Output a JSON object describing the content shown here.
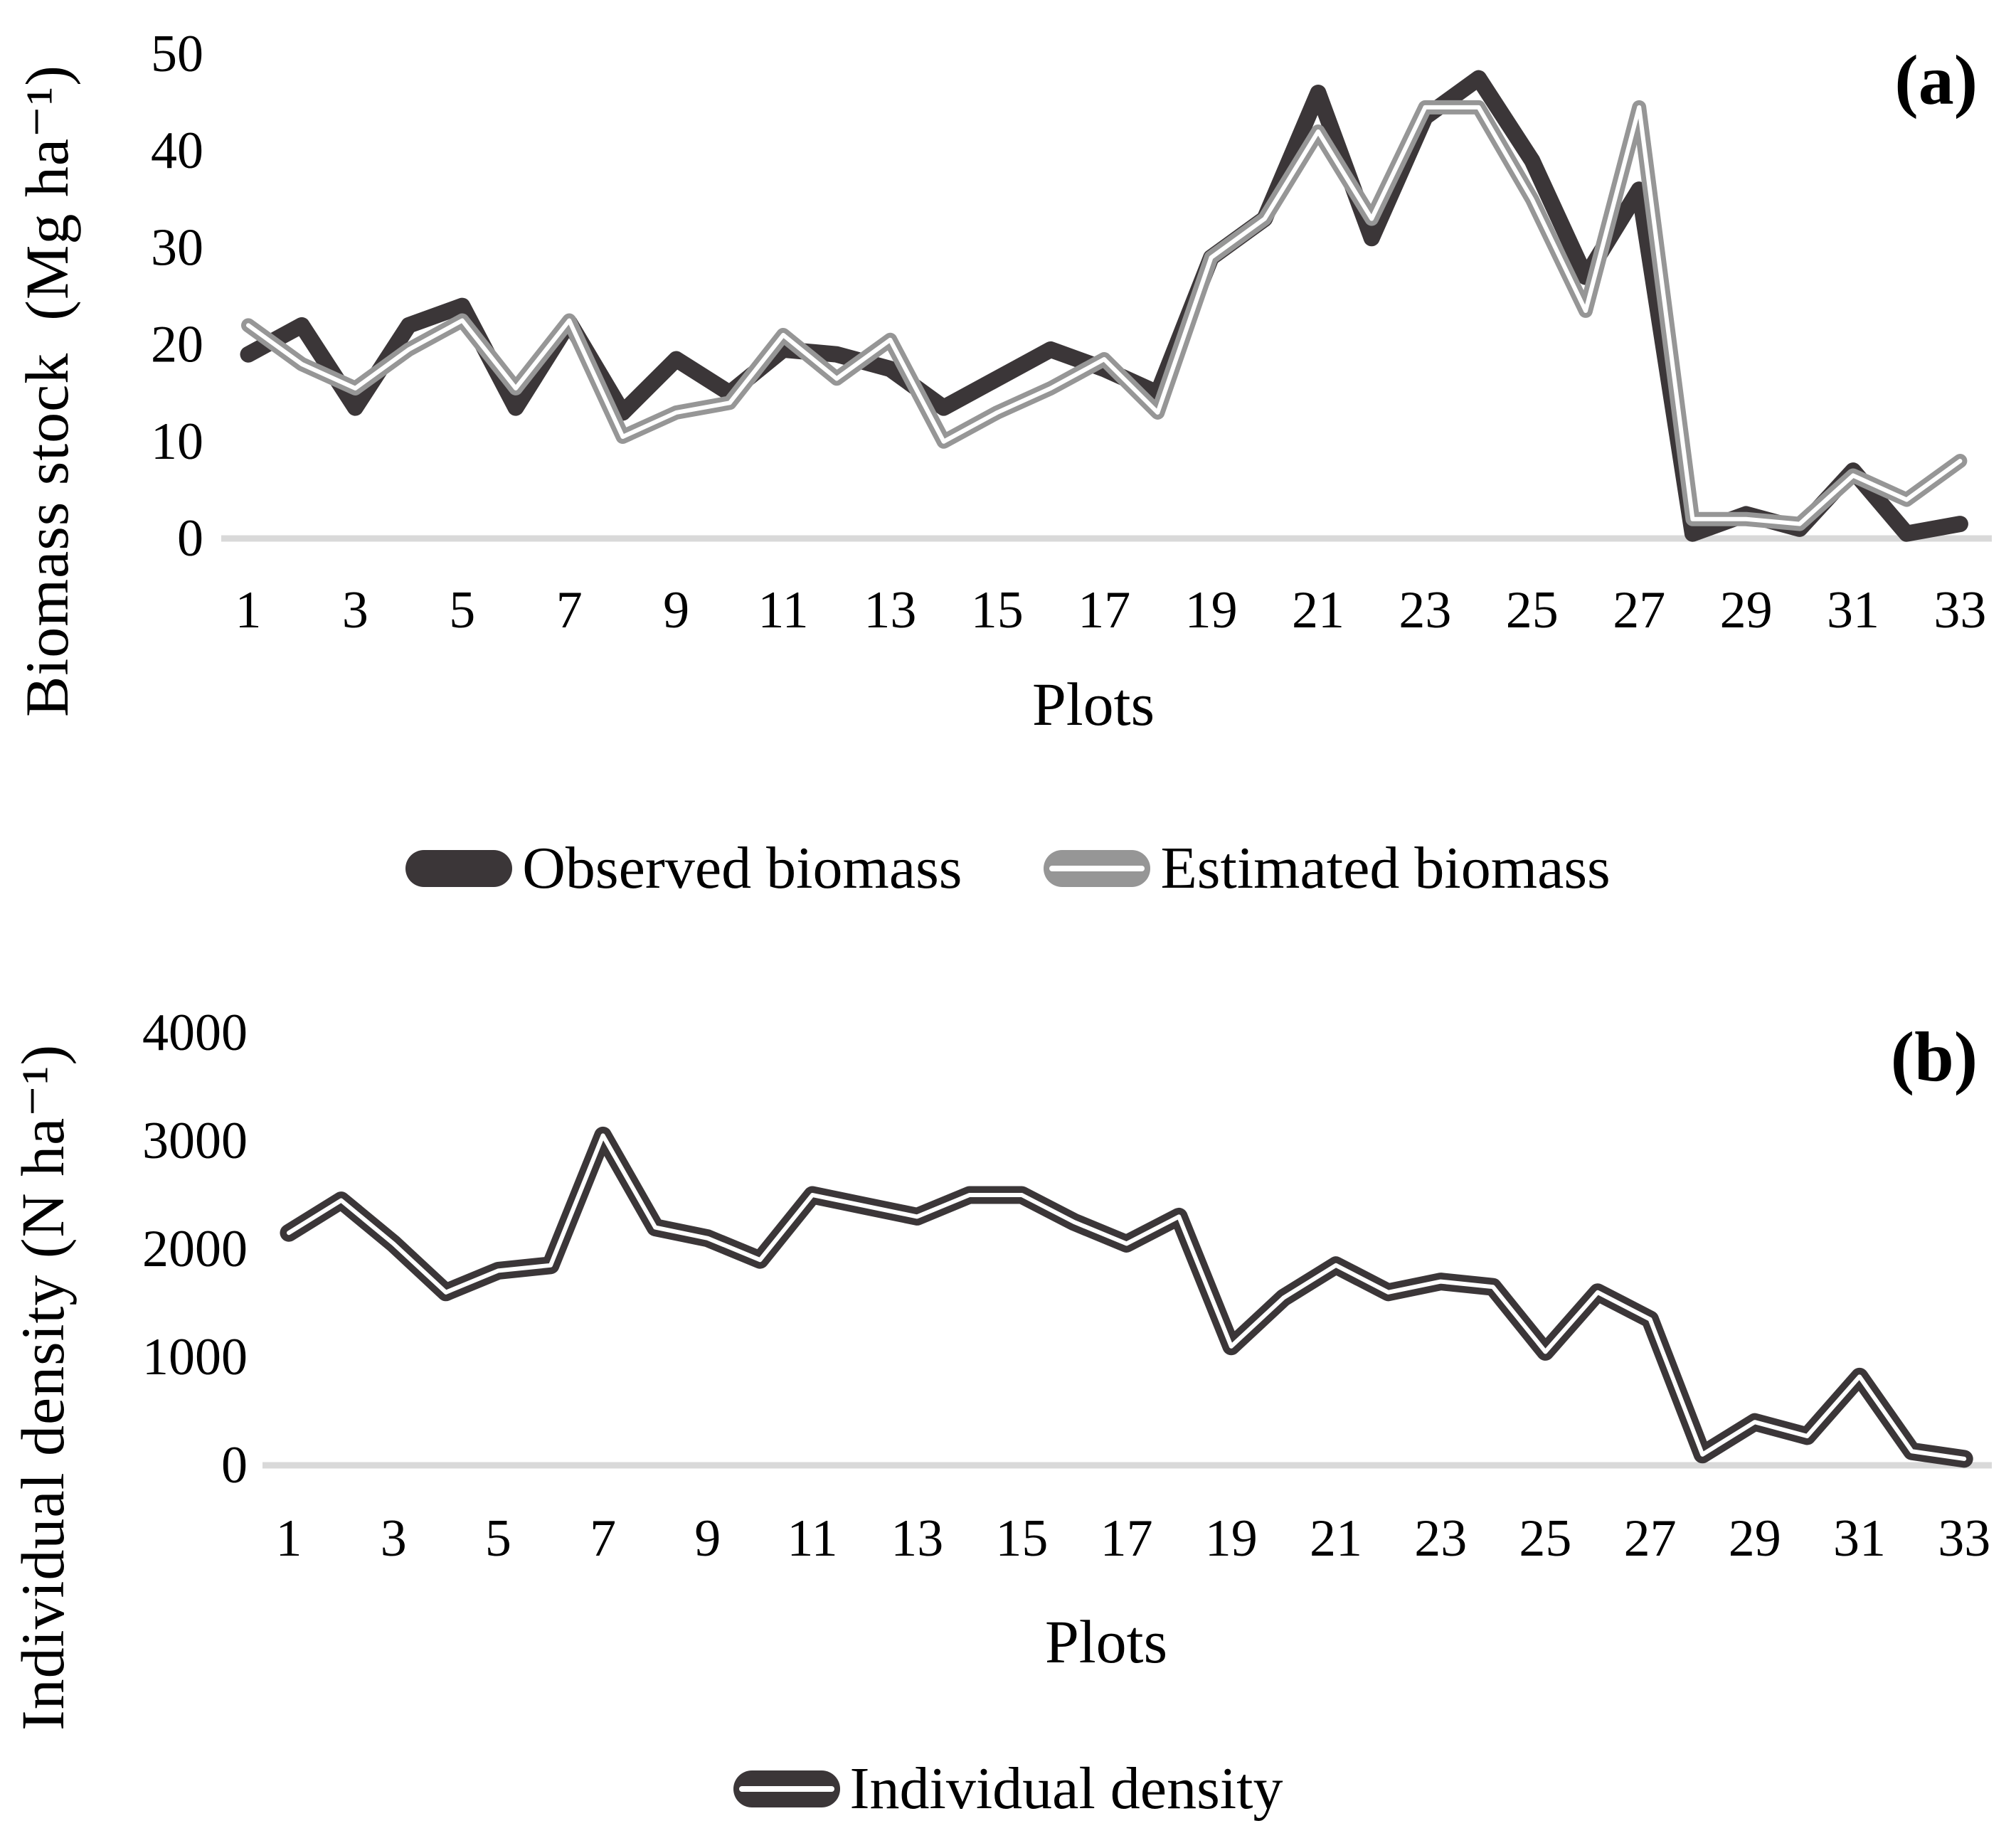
{
  "figure": {
    "background": "#ffffff",
    "baseline_color": "#d9d9d9",
    "text_color": "#000000"
  },
  "chart_data": [
    {
      "id": "a",
      "type": "line",
      "tag": "(a)",
      "title": "",
      "xlabel": "Plots",
      "ylabel": "Biomass stock  (Mg ha⁻¹)",
      "x": [
        1,
        2,
        3,
        4,
        5,
        6,
        7,
        8,
        9,
        10,
        11,
        12,
        13,
        14,
        15,
        16,
        17,
        18,
        19,
        20,
        21,
        22,
        23,
        24,
        25,
        26,
        27,
        28,
        29,
        30,
        31,
        32,
        33
      ],
      "x_tick_labels": [
        1,
        3,
        5,
        7,
        9,
        11,
        13,
        15,
        17,
        19,
        21,
        23,
        25,
        27,
        29,
        31,
        33
      ],
      "ylim": [
        0,
        50
      ],
      "y_ticks": [
        0,
        10,
        20,
        30,
        40,
        50
      ],
      "grid": "baseline-only",
      "legend_position": "below",
      "series": [
        {
          "name": "Observed biomass",
          "color": "#3b3638",
          "values": [
            19,
            22,
            13.5,
            22,
            24,
            13.5,
            22.3,
            13,
            18.5,
            15,
            19.5,
            19,
            17.5,
            13.5,
            16.5,
            19.5,
            17.5,
            15,
            29,
            33,
            46,
            31,
            43.5,
            47.5,
            39,
            27,
            36,
            0.5,
            2.5,
            1,
            7,
            0.5,
            1.5
          ]
        },
        {
          "name": "Estimated biomass",
          "color": "#969696",
          "core": "#ffffff",
          "values": [
            22,
            18,
            15.5,
            19.5,
            22.5,
            15.5,
            22.5,
            10.5,
            13,
            14,
            21,
            16.5,
            20.5,
            10,
            13,
            15.5,
            18.5,
            13,
            29,
            33,
            42,
            33,
            44.5,
            44.5,
            35,
            23.5,
            44.5,
            2,
            2,
            1.5,
            6.5,
            4,
            8
          ]
        }
      ]
    },
    {
      "id": "b",
      "type": "line",
      "tag": "(b)",
      "title": "",
      "xlabel": "Plots",
      "ylabel": "Individual density (N ha⁻¹)",
      "x": [
        1,
        2,
        3,
        4,
        5,
        6,
        7,
        8,
        9,
        10,
        11,
        12,
        13,
        14,
        15,
        16,
        17,
        18,
        19,
        20,
        21,
        22,
        23,
        24,
        25,
        26,
        27,
        28,
        29,
        30,
        31,
        32,
        33
      ],
      "x_tick_labels": [
        1,
        3,
        5,
        7,
        9,
        11,
        13,
        15,
        17,
        19,
        21,
        23,
        25,
        27,
        29,
        31,
        33
      ],
      "ylim": [
        0,
        4000
      ],
      "y_ticks": [
        0,
        1000,
        2000,
        3000,
        4000
      ],
      "grid": "baseline-only",
      "legend_position": "below",
      "series": [
        {
          "name": "Individual density",
          "color": "#3b3638",
          "core": "#ffffff",
          "values": [
            2150,
            2450,
            2050,
            1600,
            1800,
            1850,
            3050,
            2200,
            2100,
            1900,
            2500,
            2400,
            2300,
            2500,
            2500,
            2250,
            2050,
            2300,
            1100,
            1550,
            1850,
            1600,
            1700,
            1650,
            1050,
            1600,
            1350,
            100,
            400,
            270,
            820,
            130,
            60
          ]
        }
      ]
    }
  ]
}
